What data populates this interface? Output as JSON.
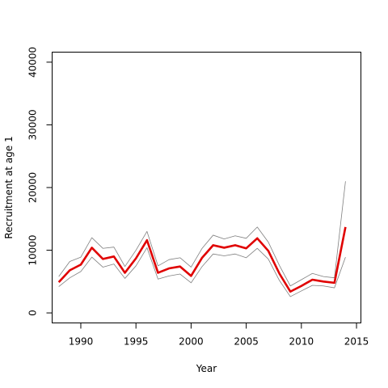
{
  "chart_data": {
    "type": "line",
    "title": "",
    "xlabel": "Year",
    "ylabel": "Recruitment at age 1",
    "xlim": [
      1987.4,
      2015.4
    ],
    "ylim": [
      -1600,
      41600
    ],
    "xticks": [
      1990,
      1995,
      2000,
      2005,
      2010,
      2015
    ],
    "yticks": [
      0,
      10000,
      20000,
      30000,
      40000
    ],
    "grid": false,
    "x": [
      1988,
      1989,
      1990,
      1991,
      1992,
      1993,
      1994,
      1995,
      1996,
      1997,
      1998,
      1999,
      2000,
      2001,
      2002,
      2003,
      2004,
      2005,
      2006,
      2007,
      2008,
      2009,
      2010,
      2011,
      2012,
      2013,
      2014
    ],
    "series": [
      {
        "color": "#e00000",
        "values": [
          4900,
          6800,
          7700,
          10400,
          8600,
          9000,
          6400,
          8700,
          11600,
          6400,
          7100,
          7400,
          5900,
          8800,
          10800,
          10400,
          10800,
          10300,
          11900,
          9900,
          6300,
          3400,
          4300,
          5300,
          5000,
          4800,
          13700
        ]
      },
      {
        "color": "#808080",
        "values": [
          5800,
          8200,
          8900,
          12000,
          10300,
          10500,
          7400,
          10000,
          13000,
          7500,
          8500,
          8800,
          7300,
          10300,
          12400,
          11800,
          12300,
          11900,
          13700,
          11300,
          7600,
          4300,
          5300,
          6300,
          5800,
          5600,
          21000
        ]
      },
      {
        "color": "#808080",
        "values": [
          4200,
          5600,
          6600,
          8900,
          7300,
          7800,
          5500,
          7500,
          10400,
          5400,
          5900,
          6200,
          4800,
          7400,
          9400,
          9100,
          9400,
          8800,
          10300,
          8600,
          5200,
          2600,
          3500,
          4400,
          4300,
          4000,
          8900
        ]
      }
    ]
  }
}
